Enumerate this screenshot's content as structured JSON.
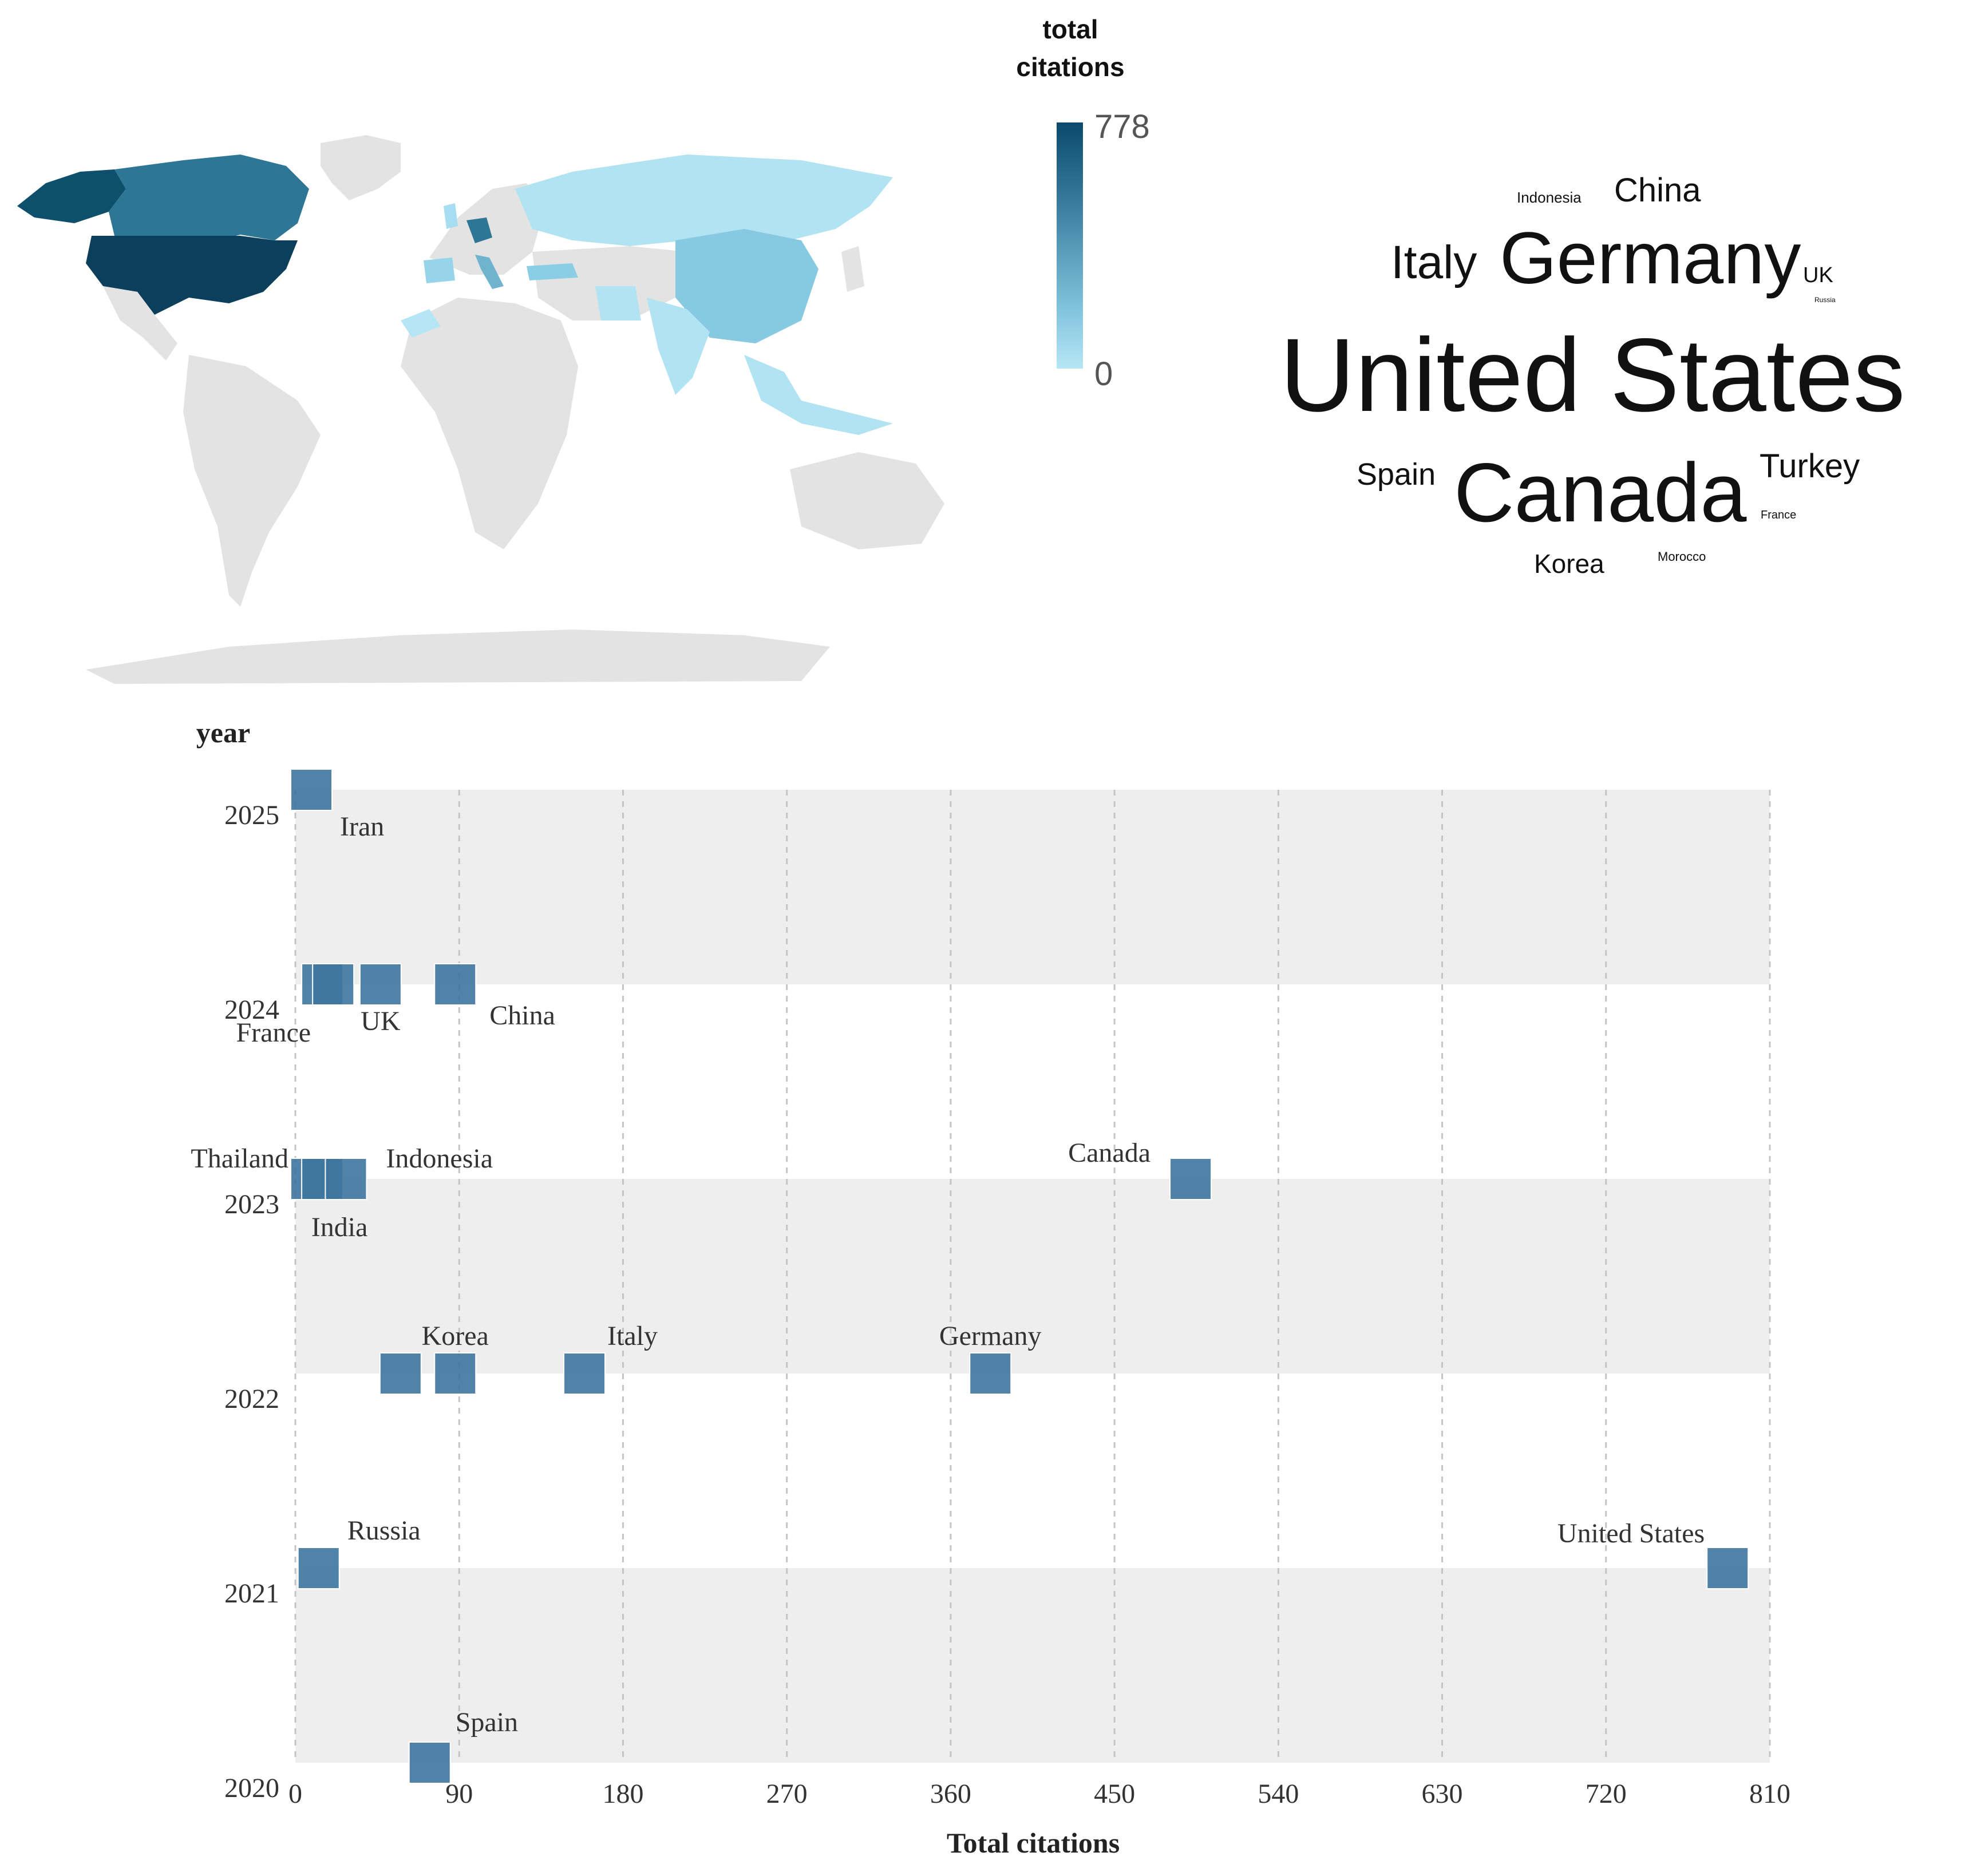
{
  "colors": {
    "land_no_data": "#e3e3e3",
    "legend_high": "#0b4a6a",
    "legend_low": "#b6e6f5",
    "marker": "#3e76a0",
    "band": "#eeeeee",
    "grid": "#c4c4c4"
  },
  "chart_data": [
    {
      "type": "choropleth",
      "legend_title": "total\ncitations",
      "legend_max": "778",
      "legend_min": "0",
      "value_range": [
        0,
        778
      ]
    },
    {
      "type": "wordcloud",
      "words": [
        {
          "text": "Indonesia",
          "rank": 10
        },
        {
          "text": "China",
          "rank": 6
        },
        {
          "text": "Italy",
          "rank": 5
        },
        {
          "text": "Germany",
          "rank": 3
        },
        {
          "text": "UK",
          "rank": 9
        },
        {
          "text": "Russia",
          "rank": 13
        },
        {
          "text": "United States",
          "rank": 1
        },
        {
          "text": "Spain",
          "rank": 7
        },
        {
          "text": "Canada",
          "rank": 2
        },
        {
          "text": "Turkey",
          "rank": 4
        },
        {
          "text": "France",
          "rank": 12
        },
        {
          "text": "Korea",
          "rank": 8
        },
        {
          "text": "Morocco",
          "rank": 11
        }
      ]
    },
    {
      "type": "scatter",
      "xlabel": "Total citations",
      "ylabel": "year",
      "xlim": [
        0,
        810
      ],
      "xticks": [
        0,
        90,
        180,
        270,
        360,
        450,
        540,
        630,
        720,
        810
      ],
      "yticks": [
        2020,
        2021,
        2022,
        2023,
        2024,
        2025
      ],
      "grid": true,
      "points": [
        {
          "label": "Iran",
          "x": 0,
          "year": 2025
        },
        {
          "label": "France",
          "x": 6,
          "year": 2024
        },
        {
          "label": "",
          "x": 12,
          "year": 2024
        },
        {
          "label": "UK",
          "x": 38,
          "year": 2024
        },
        {
          "label": "China",
          "x": 79,
          "year": 2024
        },
        {
          "label": "Thailand",
          "x": 0,
          "year": 2023
        },
        {
          "label": "India",
          "x": 6,
          "year": 2023
        },
        {
          "label": "Indonesia",
          "x": 19,
          "year": 2023
        },
        {
          "label": "Canada",
          "x": 483,
          "year": 2023
        },
        {
          "label": "",
          "x": 49,
          "year": 2022
        },
        {
          "label": "Korea",
          "x": 79,
          "year": 2022
        },
        {
          "label": "Italy",
          "x": 150,
          "year": 2022
        },
        {
          "label": "Germany",
          "x": 373,
          "year": 2022
        },
        {
          "label": "Russia",
          "x": 4,
          "year": 2021
        },
        {
          "label": "United States",
          "x": 778,
          "year": 2021
        },
        {
          "label": "Spain",
          "x": 65,
          "year": 2020
        }
      ]
    }
  ]
}
